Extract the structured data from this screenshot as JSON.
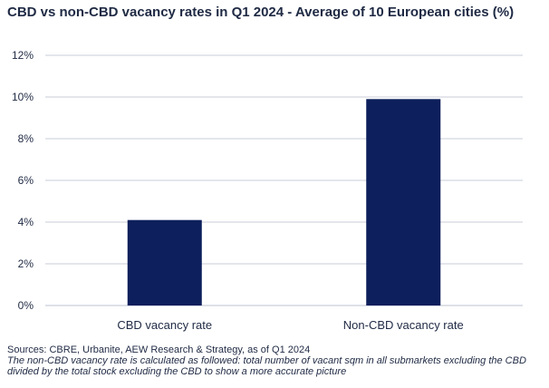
{
  "title": "CBD vs non-CBD vacancy rates in Q1 2024 - Average of 10 European cities (%)",
  "footer": {
    "sources": "Sources: CBRE, Urbanite, AEW Research & Strategy, as of Q1 2024",
    "note_line1": "The non-CBD vacancy rate is calculated as followed: total number of vacant sqm in all submarkets excluding the CBD",
    "note_line2": "divided by the total stock excluding the CBD to show a more accurate picture"
  },
  "colors": {
    "bar": "#0d1f5c",
    "grid": "#c9ced9",
    "text": "#1f2a44"
  },
  "chart_data": {
    "type": "bar",
    "categories": [
      "CBD vacancy rate",
      "Non-CBD vacancy rate"
    ],
    "values": [
      4.1,
      9.9
    ],
    "title": "CBD vs non-CBD vacancy rates in Q1 2024 - Average of 10 European cities (%)",
    "xlabel": "",
    "ylabel": "",
    "ylim": [
      0,
      12
    ],
    "yticks": [
      0,
      2,
      4,
      6,
      8,
      10,
      12
    ],
    "ytick_labels": [
      "0%",
      "2%",
      "4%",
      "6%",
      "8%",
      "10%",
      "12%"
    ],
    "grid": true,
    "legend": "none"
  }
}
